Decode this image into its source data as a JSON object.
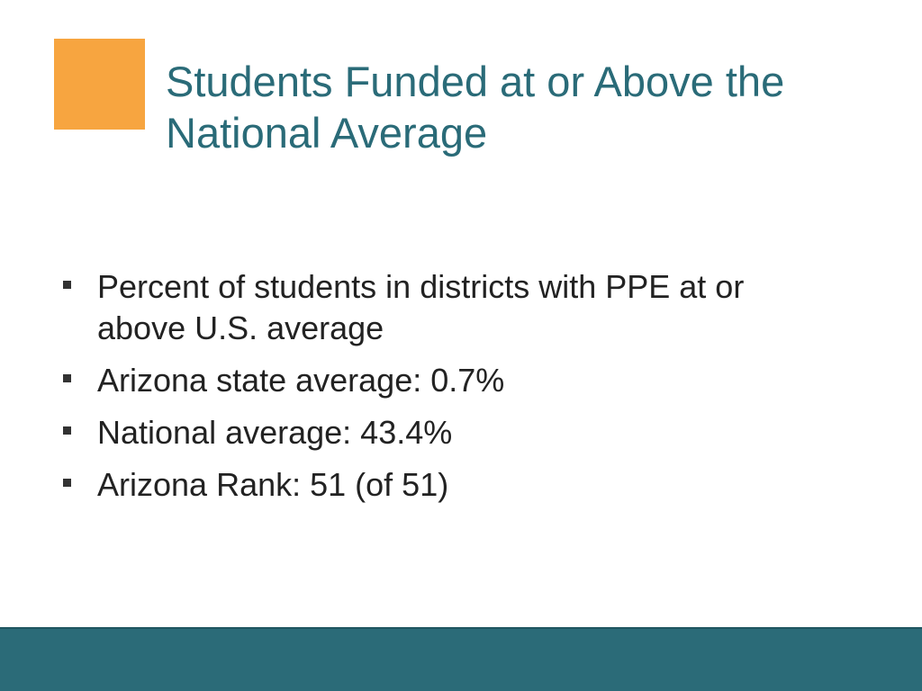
{
  "colors": {
    "accent": "#f7a540",
    "title": "#2a6b78",
    "footer": "#2b6b78"
  },
  "slide": {
    "title_lines": [
      "Students Funded at or Above the",
      "National Average"
    ],
    "bullets": [
      {
        "lines": [
          "Percent of students in districts with PPE at or",
          "above U.S. average"
        ]
      },
      {
        "lines": [
          "Arizona state average: 0.7%"
        ]
      },
      {
        "lines": [
          "National average: 43.4%"
        ]
      },
      {
        "lines": [
          "Arizona Rank: 51 (of 51)"
        ]
      }
    ]
  }
}
